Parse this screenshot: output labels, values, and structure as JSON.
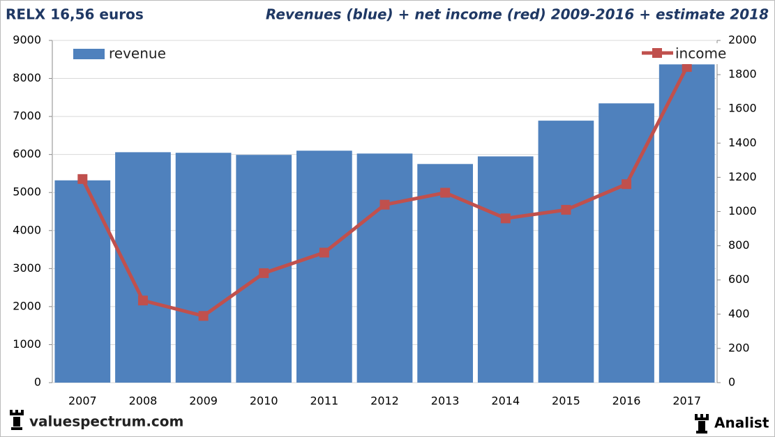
{
  "chart_data": {
    "type": "bar",
    "title": "RELX 16,56 euros",
    "subtitle": "Revenues (blue) + net income (red) 2009-2016 + estimate 2018",
    "categories": [
      "2007",
      "2008",
      "2009",
      "2010",
      "2011",
      "2012",
      "2013",
      "2014",
      "2015",
      "2016",
      "2017"
    ],
    "series": [
      {
        "name": "revenue",
        "type": "bar",
        "color": "#4f81bd",
        "values": [
          5320,
          6060,
          6045,
          5990,
          6100,
          6025,
          5750,
          5950,
          6890,
          7345,
          8370
        ]
      },
      {
        "name": "income",
        "type": "line",
        "axis": "y2",
        "color": "#c0504d",
        "values": [
          1190,
          480,
          390,
          640,
          760,
          1040,
          1110,
          960,
          1010,
          1160,
          1845
        ]
      }
    ],
    "ylim": [
      0,
      9000
    ],
    "yticks": [
      0,
      1000,
      2000,
      3000,
      4000,
      5000,
      6000,
      7000,
      8000,
      9000
    ],
    "y2lim": [
      0,
      2000
    ],
    "y2ticks": [
      0,
      200,
      400,
      600,
      800,
      1000,
      1200,
      1400,
      1600,
      1800,
      2000
    ],
    "grid": true,
    "footer_left": "valuespectrum.com",
    "footer_right": "Analist"
  }
}
